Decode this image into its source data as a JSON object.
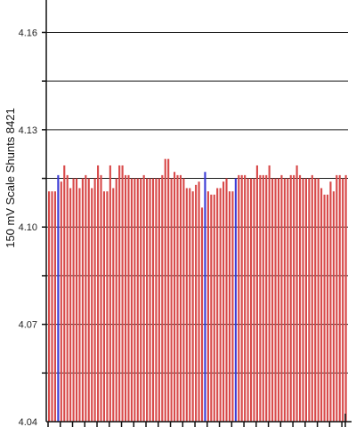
{
  "chart_data": {
    "type": "bar",
    "ylabel": "150 mV Scale   Shunts 8421",
    "ylim": [
      4.04,
      4.17
    ],
    "yticks_labeled": [
      "4.04",
      "4.07",
      "4.10",
      "4.13",
      "4.16"
    ],
    "ytick_values": [
      4.04,
      4.07,
      4.1,
      4.13,
      4.16
    ],
    "gridlines": [
      4.055,
      4.07,
      4.085,
      4.1,
      4.115,
      4.13,
      4.145,
      4.16
    ],
    "grid": true,
    "colors": {
      "bar": "#d84a4a",
      "highlight": "#3b3bd6",
      "grid": "#1a1a1a",
      "axis": "#111111"
    },
    "highlighted_indices": [
      3,
      51,
      61
    ],
    "series": [
      {
        "values": [
          4.111,
          4.111,
          4.111,
          4.116,
          4.114,
          4.119,
          4.116,
          4.112,
          4.115,
          4.115,
          4.112,
          4.115,
          4.116,
          4.115,
          4.112,
          4.115,
          4.119,
          4.116,
          4.111,
          4.111,
          4.119,
          4.112,
          4.115,
          4.119,
          4.119,
          4.116,
          4.116,
          4.115,
          4.115,
          4.115,
          4.115,
          4.116,
          4.115,
          4.115,
          4.115,
          4.115,
          4.115,
          4.116,
          4.121,
          4.121,
          4.115,
          4.117,
          4.116,
          4.116,
          4.115,
          4.112,
          4.112,
          4.111,
          4.113,
          4.114,
          4.106,
          4.117,
          4.111,
          4.11,
          4.11,
          4.112,
          4.112,
          4.114,
          4.115,
          4.111,
          4.111,
          4.115,
          4.116,
          4.116,
          4.116,
          4.115,
          4.115,
          4.115,
          4.119,
          4.116,
          4.116,
          4.116,
          4.119,
          4.115,
          4.115,
          4.115,
          4.116,
          4.115,
          4.115,
          4.116,
          4.116,
          4.119,
          4.116,
          4.115,
          4.115,
          4.115,
          4.116,
          4.115,
          4.115,
          4.112,
          4.11,
          4.11,
          4.114,
          4.111,
          4.116,
          4.116,
          4.115,
          4.116
        ]
      }
    ]
  }
}
